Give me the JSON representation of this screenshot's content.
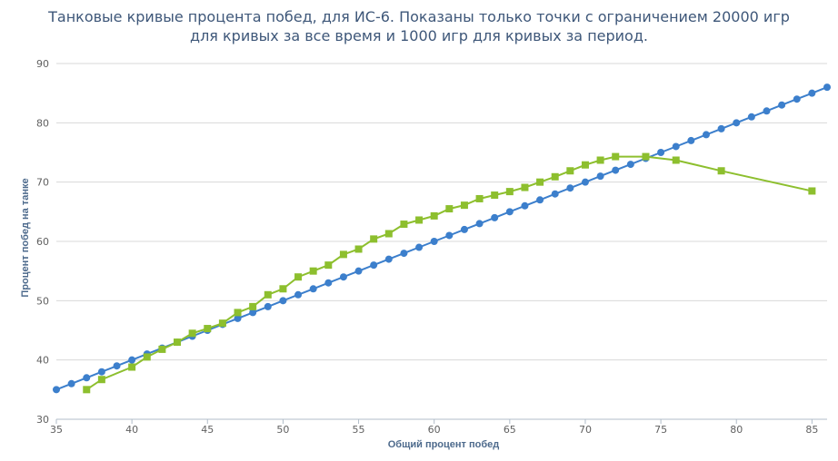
{
  "chart_data": {
    "type": "line",
    "title": "Танковые кривые процента побед, для ИС-6. Показаны только точки с ограничением 20000 игр для кривых за все время и 1000 игр для кривых за период.",
    "xlabel": "Общий процент побед",
    "ylabel": "Процент побед на танке",
    "xlim": [
      35,
      86
    ],
    "ylim": [
      30,
      90
    ],
    "xticks": [
      35,
      40,
      45,
      50,
      55,
      60,
      65,
      70,
      75,
      80,
      85
    ],
    "yticks": [
      30,
      40,
      50,
      60,
      70,
      80,
      90
    ],
    "grid": true,
    "series": [
      {
        "color": "#3c7fcc",
        "marker": "circle",
        "x": [
          35,
          36,
          37,
          38,
          39,
          40,
          41,
          42,
          43,
          44,
          45,
          46,
          47,
          48,
          49,
          50,
          51,
          52,
          53,
          54,
          55,
          56,
          57,
          58,
          59,
          60,
          61,
          62,
          63,
          64,
          65,
          66,
          67,
          68,
          69,
          70,
          71,
          72,
          73,
          74,
          75,
          76,
          77,
          78,
          79,
          80,
          81,
          82,
          83,
          84,
          85,
          86
        ],
        "y": [
          35,
          36,
          37,
          38,
          39,
          40,
          41,
          42,
          43,
          44,
          45,
          46,
          47,
          48,
          49,
          50,
          51,
          52,
          53,
          54,
          55,
          56,
          57,
          58,
          59,
          60,
          61,
          62,
          63,
          64,
          65,
          66,
          67,
          68,
          69,
          70,
          71,
          72,
          73,
          74,
          75,
          76,
          77,
          78,
          79,
          80,
          81,
          82,
          83,
          84,
          85,
          86
        ]
      },
      {
        "color": "#8dbf2e",
        "marker": "square",
        "x": [
          37,
          38,
          40,
          41,
          42,
          43,
          44,
          45,
          46,
          47,
          48,
          49,
          50,
          51,
          52,
          53,
          54,
          55,
          56,
          57,
          58,
          59,
          60,
          61,
          62,
          63,
          64,
          65,
          66,
          67,
          68,
          69,
          70,
          71,
          72,
          74,
          76,
          79,
          85
        ],
        "y": [
          35,
          36.7,
          38.8,
          40.5,
          41.8,
          43,
          44.5,
          45.3,
          46.2,
          48,
          49,
          51,
          52,
          54,
          55,
          56,
          57.8,
          58.7,
          60.4,
          61.3,
          62.9,
          63.6,
          64.3,
          65.5,
          66.1,
          67.2,
          67.8,
          68.4,
          69.1,
          70,
          70.9,
          71.9,
          72.9,
          73.7,
          74.3,
          74.3,
          73.7,
          71.9,
          68.5
        ]
      }
    ]
  }
}
